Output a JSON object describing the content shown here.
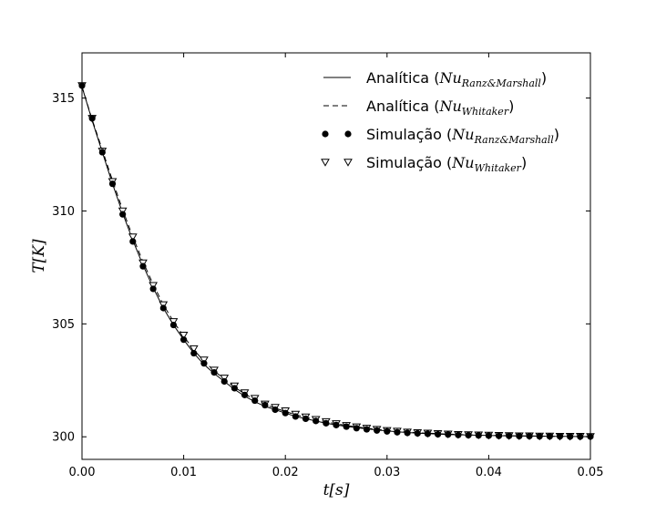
{
  "chart_data": {
    "type": "line",
    "xlabel": "t[s]",
    "ylabel": "T[K]",
    "xlim": [
      0.0,
      0.05
    ],
    "ylim": [
      299.0,
      317.0
    ],
    "xticks": [
      "0.00",
      "0.01",
      "0.02",
      "0.03",
      "0.04",
      "0.05"
    ],
    "yticks": [
      "300",
      "305",
      "310",
      "315"
    ],
    "grid": false,
    "legend_position": "top-right",
    "legend": [
      {
        "text": "Analítica (",
        "math_base": "Nu",
        "math_sub": "Ranz&Marshall",
        "close": ")",
        "style": "solid-line"
      },
      {
        "text": "Analítica (",
        "math_base": "Nu",
        "math_sub": "Whitaker",
        "close": ")",
        "style": "dashed-line"
      },
      {
        "text": "Simulação (",
        "math_base": "Nu",
        "math_sub": "Ranz&Marshall",
        "close": ")",
        "style": "filled-circle"
      },
      {
        "text": "Simulação (",
        "math_base": "Nu",
        "math_sub": "Whitaker",
        "close": ")",
        "style": "open-triangle-down"
      }
    ],
    "x": [
      0.0,
      0.001,
      0.002,
      0.003,
      0.004,
      0.005,
      0.006,
      0.007,
      0.008,
      0.009,
      0.01,
      0.011,
      0.012,
      0.013,
      0.014,
      0.015,
      0.016,
      0.017,
      0.018,
      0.019,
      0.02,
      0.021,
      0.022,
      0.023,
      0.024,
      0.025,
      0.026,
      0.027,
      0.028,
      0.029,
      0.03,
      0.031,
      0.032,
      0.033,
      0.034,
      0.035,
      0.036,
      0.037,
      0.038,
      0.039,
      0.04,
      0.041,
      0.042,
      0.043,
      0.044,
      0.045,
      0.046,
      0.047,
      0.048,
      0.049,
      0.05
    ],
    "series": [
      {
        "name": "Analítica (Nu_Ranz&Marshall)",
        "style": "solid",
        "values": [
          315.5,
          314.0,
          312.6,
          311.2,
          309.9,
          308.7,
          307.6,
          306.6,
          305.7,
          304.95,
          304.3,
          303.7,
          303.2,
          302.8,
          302.45,
          302.1,
          301.8,
          301.55,
          301.35,
          301.2,
          301.05,
          300.9,
          300.8,
          300.7,
          300.6,
          300.53,
          300.46,
          300.4,
          300.35,
          300.3,
          300.26,
          300.22,
          300.19,
          300.16,
          300.14,
          300.12,
          300.1,
          300.09,
          300.08,
          300.07,
          300.06,
          300.05,
          300.04,
          300.04,
          300.03,
          300.03,
          300.02,
          300.02,
          300.02,
          300.01,
          300.01
        ]
      },
      {
        "name": "Analítica (Nu_Whitaker)",
        "style": "dashed",
        "values": [
          315.5,
          314.05,
          312.7,
          311.35,
          310.05,
          308.85,
          307.75,
          306.75,
          305.85,
          305.1,
          304.45,
          303.85,
          303.35,
          302.92,
          302.55,
          302.2,
          301.9,
          301.65,
          301.43,
          301.27,
          301.12,
          300.98,
          300.86,
          300.76,
          300.66,
          300.58,
          300.5,
          300.44,
          300.38,
          300.33,
          300.29,
          300.25,
          300.21,
          300.18,
          300.16,
          300.14,
          300.12,
          300.1,
          300.09,
          300.08,
          300.07,
          300.06,
          300.05,
          300.04,
          300.04,
          300.03,
          300.03,
          300.02,
          300.02,
          300.02,
          300.01
        ]
      },
      {
        "name": "Simulação (Nu_Ranz&Marshall)",
        "style": "filled-circle",
        "values": [
          315.55,
          314.1,
          312.6,
          311.2,
          309.85,
          308.65,
          307.55,
          306.55,
          305.7,
          304.95,
          304.3,
          303.7,
          303.25,
          302.85,
          302.45,
          302.15,
          301.85,
          301.6,
          301.4,
          301.2,
          301.05,
          300.9,
          300.8,
          300.7,
          300.6,
          300.52,
          300.45,
          300.38,
          300.33,
          300.28,
          300.24,
          300.2,
          300.17,
          300.15,
          300.13,
          300.11,
          300.1,
          300.08,
          300.07,
          300.06,
          300.05,
          300.04,
          300.04,
          300.03,
          300.03,
          300.02,
          300.02,
          300.02,
          300.01,
          300.01,
          300.01
        ]
      },
      {
        "name": "Simulação (Nu_Whitaker)",
        "style": "open-triangle-down",
        "values": [
          315.55,
          314.1,
          312.65,
          311.3,
          310.0,
          308.85,
          307.7,
          306.7,
          305.85,
          305.1,
          304.5,
          303.9,
          303.4,
          302.95,
          302.6,
          302.25,
          301.95,
          301.7,
          301.45,
          301.3,
          301.15,
          301.0,
          300.88,
          300.77,
          300.67,
          300.58,
          300.5,
          300.44,
          300.38,
          300.33,
          300.28,
          300.25,
          300.21,
          300.18,
          300.16,
          300.14,
          300.12,
          300.1,
          300.09,
          300.08,
          300.07,
          300.06,
          300.05,
          300.04,
          300.04,
          300.03,
          300.03,
          300.02,
          300.02,
          300.02,
          300.01
        ]
      }
    ]
  }
}
